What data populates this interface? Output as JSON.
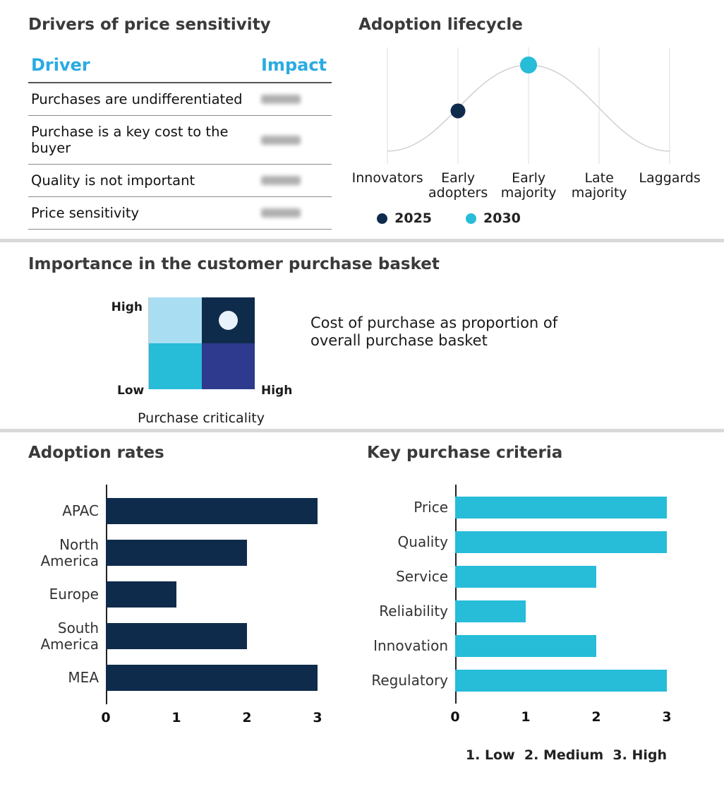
{
  "colors": {
    "navy": "#0f2b4c",
    "cyan": "#27bcd8",
    "table_header_cyan": "#29abe2",
    "light_blue": "#a9def2",
    "indigo": "#2e3a8d",
    "curve_gray": "#d0d0d0",
    "marker_white": "#e9f1fb"
  },
  "drivers_table": {
    "title": "Drivers of price sensitivity",
    "columns": [
      "Driver",
      "Impact"
    ],
    "rows": [
      {
        "driver": "Purchases are undifferentiated",
        "impact_redacted": true
      },
      {
        "driver": "Purchase is a key cost to the buyer",
        "impact_redacted": true
      },
      {
        "driver": "Quality is not important",
        "impact_redacted": true
      },
      {
        "driver": "Price sensitivity",
        "impact_redacted": true
      }
    ]
  },
  "chart_data": [
    {
      "type": "line",
      "title": "Adoption lifecycle",
      "x": [
        "Innovators",
        "Early adopters",
        "Early majority",
        "Late majority",
        "Laggards"
      ],
      "curve_shape": "bell curve peaking at Early majority",
      "grid": true,
      "markers": [
        {
          "label": "2025",
          "x": "Early adopters",
          "color": "#0f2b4c"
        },
        {
          "label": "2030",
          "x": "Early majority",
          "color": "#27bcd8"
        }
      ],
      "legend": [
        "2025",
        "2030"
      ],
      "legend_position": "bottom"
    },
    {
      "type": "bar",
      "orientation": "horizontal",
      "title": "Adoption rates",
      "categories": [
        "APAC",
        "North America",
        "Europe",
        "South America",
        "MEA"
      ],
      "values": [
        3,
        2,
        1,
        2,
        3
      ],
      "xlim": [
        0,
        3
      ],
      "ticks": [
        "0",
        "1",
        "2",
        "3"
      ],
      "bar_color": "#0f2b4c",
      "grid": false
    },
    {
      "type": "bar",
      "orientation": "horizontal",
      "title": "Key purchase criteria",
      "categories": [
        "Price",
        "Quality",
        "Service",
        "Reliability",
        "Innovation",
        "Regulatory"
      ],
      "values": [
        3,
        3,
        2,
        1,
        2,
        3
      ],
      "xlim": [
        0,
        3
      ],
      "ticks": [
        "0",
        "1",
        "2",
        "3"
      ],
      "bar_color": "#27bcd8",
      "grid": false,
      "footnote": "1. Low  2. Medium  3. High"
    }
  ],
  "basket": {
    "title": "Importance in the customer purchase basket",
    "y_axis_high": "High",
    "y_axis_low": "Low",
    "x_axis_high": "High",
    "x_label": "Purchase criticality",
    "description": "Cost of purchase as proportion of overall purchase basket",
    "quadrants": {
      "top_left": "#a9def2",
      "top_right": "#0f2b4c",
      "bottom_left": "#27bcd8",
      "bottom_right": "#2e3a8d"
    },
    "marker_quadrant": "top_right"
  }
}
